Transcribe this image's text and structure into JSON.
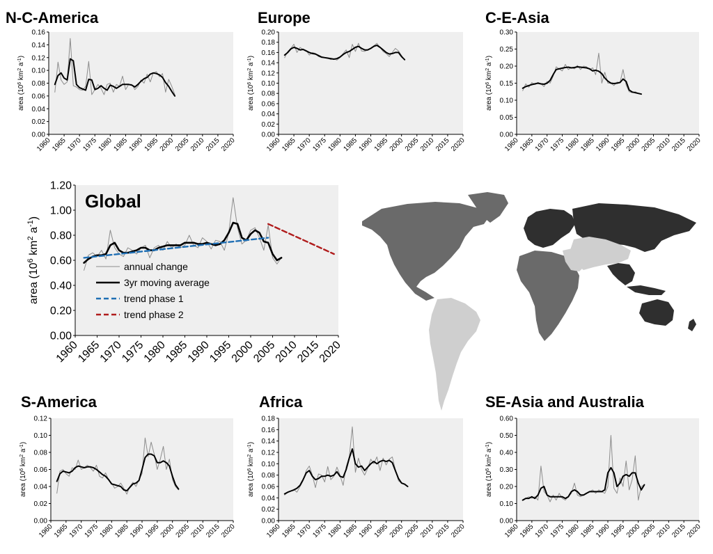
{
  "colors": {
    "plot_bg": "#efefef",
    "annual": "#8c8c8c",
    "moving_avg": "#000000",
    "trend1": "#1f6fb4",
    "trend2": "#b01c1c",
    "map_dark": "#2f2f2f",
    "map_mid": "#6a6a6a",
    "map_light": "#cfcfcf"
  },
  "chart_data": [
    {
      "id": "ncam",
      "type": "line",
      "title": "N-C-America",
      "ylabel": "area (10⁶ km² a⁻¹)",
      "ylim": [
        0,
        0.16
      ],
      "yticks": [
        "0.00",
        "0.02",
        "0.04",
        "0.06",
        "0.08",
        "0.10",
        "0.12",
        "0.14",
        "0.16"
      ],
      "xlim": [
        1960,
        2020
      ],
      "xticks": [
        "1960",
        "1965",
        "1970",
        "1975",
        "1980",
        "1985",
        "1990",
        "1995",
        "2000",
        "2005",
        "2010",
        "2015",
        "2020"
      ],
      "x_start": 1962,
      "series": [
        {
          "name": "annual change",
          "values": [
            0.066,
            0.113,
            0.085,
            0.078,
            0.082,
            0.15,
            0.076,
            0.074,
            0.07,
            0.069,
            0.075,
            0.114,
            0.062,
            0.07,
            0.078,
            0.072,
            0.062,
            0.078,
            0.08,
            0.066,
            0.078,
            0.075,
            0.091,
            0.07,
            0.078,
            0.078,
            0.07,
            0.075,
            0.085,
            0.08,
            0.094,
            0.082,
            0.096,
            0.098,
            0.09,
            0.095,
            0.066,
            0.086,
            0.075,
            0.062
          ]
        },
        {
          "name": "3yr moving average",
          "values": [
            0.078,
            0.092,
            0.096,
            0.088,
            0.085,
            0.118,
            0.115,
            0.078,
            0.073,
            0.071,
            0.069,
            0.086,
            0.085,
            0.07,
            0.072,
            0.076,
            0.072,
            0.069,
            0.077,
            0.075,
            0.072,
            0.075,
            0.078,
            0.078,
            0.078,
            0.077,
            0.074,
            0.078,
            0.083,
            0.087,
            0.089,
            0.094,
            0.096,
            0.095,
            0.093,
            0.089,
            0.081,
            0.075,
            0.067,
            0.06
          ]
        }
      ]
    },
    {
      "id": "europe",
      "type": "line",
      "title": "Europe",
      "ylabel": "area (10⁶ km² a⁻¹)",
      "ylim": [
        0,
        0.2
      ],
      "yticks": [
        "0.00",
        "0.02",
        "0.04",
        "0.06",
        "0.08",
        "0.10",
        "0.12",
        "0.14",
        "0.16",
        "0.18",
        "0.20"
      ],
      "xlim": [
        1960,
        2020
      ],
      "xticks": [
        "1960",
        "1965",
        "1970",
        "1975",
        "1980",
        "1985",
        "1990",
        "1995",
        "2000",
        "2005",
        "2010",
        "2015",
        "2020"
      ],
      "x_start": 1962,
      "series": [
        {
          "name": "annual change",
          "values": [
            0.15,
            0.162,
            0.168,
            0.176,
            0.16,
            0.17,
            0.166,
            0.164,
            0.155,
            0.16,
            0.158,
            0.152,
            0.15,
            0.15,
            0.149,
            0.146,
            0.148,
            0.145,
            0.15,
            0.158,
            0.165,
            0.15,
            0.176,
            0.162,
            0.178,
            0.163,
            0.162,
            0.165,
            0.168,
            0.173,
            0.178,
            0.17,
            0.162,
            0.158,
            0.152,
            0.16,
            0.168,
            0.163,
            0.154,
            0.145
          ]
        },
        {
          "name": "3yr moving average",
          "values": [
            0.155,
            0.16,
            0.167,
            0.17,
            0.168,
            0.165,
            0.166,
            0.163,
            0.16,
            0.158,
            0.157,
            0.154,
            0.151,
            0.15,
            0.149,
            0.148,
            0.147,
            0.148,
            0.151,
            0.156,
            0.16,
            0.162,
            0.166,
            0.17,
            0.172,
            0.168,
            0.165,
            0.165,
            0.168,
            0.172,
            0.174,
            0.17,
            0.165,
            0.16,
            0.157,
            0.158,
            0.16,
            0.16,
            0.152,
            0.146
          ]
        }
      ]
    },
    {
      "id": "ceasia",
      "type": "line",
      "title": "C-E-Asia",
      "ylabel": "area (10⁶ km² a⁻¹)",
      "ylim": [
        0,
        0.3
      ],
      "yticks": [
        "0.00",
        "0.05",
        "0.10",
        "0.15",
        "0.20",
        "0.25",
        "0.30"
      ],
      "xlim": [
        1960,
        2020
      ],
      "xticks": [
        "1960",
        "1965",
        "1970",
        "1975",
        "1980",
        "1985",
        "1990",
        "1995",
        "2000",
        "2005",
        "2010",
        "2015",
        "2020"
      ],
      "x_start": 1962,
      "series": [
        {
          "name": "annual change",
          "values": [
            0.128,
            0.148,
            0.138,
            0.152,
            0.146,
            0.152,
            0.148,
            0.14,
            0.155,
            0.15,
            0.17,
            0.198,
            0.192,
            0.186,
            0.205,
            0.19,
            0.196,
            0.192,
            0.202,
            0.19,
            0.2,
            0.198,
            0.19,
            0.195,
            0.175,
            0.238,
            0.15,
            0.182,
            0.15,
            0.15,
            0.143,
            0.153,
            0.152,
            0.19,
            0.145,
            0.125,
            0.122,
            0.125,
            0.12,
            0.118
          ]
        },
        {
          "name": "3yr moving average",
          "values": [
            0.135,
            0.14,
            0.143,
            0.146,
            0.148,
            0.15,
            0.148,
            0.147,
            0.15,
            0.158,
            0.175,
            0.19,
            0.192,
            0.194,
            0.196,
            0.197,
            0.195,
            0.196,
            0.198,
            0.197,
            0.196,
            0.195,
            0.192,
            0.186,
            0.188,
            0.185,
            0.178,
            0.165,
            0.156,
            0.15,
            0.149,
            0.15,
            0.152,
            0.162,
            0.155,
            0.13,
            0.124,
            0.122,
            0.12,
            0.118
          ]
        }
      ]
    },
    {
      "id": "global",
      "type": "line",
      "title": "Global",
      "ylabel": "area (10⁶ km² a⁻¹)",
      "ylim": [
        0,
        1.2
      ],
      "yticks": [
        "0.00",
        "0.20",
        "0.40",
        "0.60",
        "0.80",
        "1.00",
        "1.20"
      ],
      "xlim": [
        1960,
        2020
      ],
      "xticks": [
        "1960",
        "1965",
        "1970",
        "1975",
        "1980",
        "1985",
        "1990",
        "1995",
        "2000",
        "2005",
        "2010",
        "2015",
        "2020"
      ],
      "x_start": 1962,
      "legend": [
        "annual change",
        "3yr moving average",
        "trend phase 1",
        "trend phase 2"
      ],
      "series": [
        {
          "name": "annual change",
          "values": [
            0.52,
            0.64,
            0.66,
            0.63,
            0.68,
            0.61,
            0.84,
            0.7,
            0.65,
            0.63,
            0.7,
            0.68,
            0.65,
            0.7,
            0.72,
            0.62,
            0.7,
            0.72,
            0.68,
            0.75,
            0.7,
            0.73,
            0.7,
            0.72,
            0.8,
            0.72,
            0.7,
            0.78,
            0.75,
            0.69,
            0.76,
            0.75,
            0.68,
            0.82,
            1.1,
            0.86,
            0.73,
            0.76,
            0.84,
            0.86,
            0.78,
            0.68,
            0.88,
            0.62,
            0.57,
            0.62
          ]
        },
        {
          "name": "3yr moving average",
          "values": [
            0.58,
            0.61,
            0.63,
            0.64,
            0.64,
            0.65,
            0.72,
            0.74,
            0.68,
            0.66,
            0.66,
            0.67,
            0.68,
            0.7,
            0.7,
            0.68,
            0.68,
            0.7,
            0.71,
            0.72,
            0.72,
            0.72,
            0.72,
            0.74,
            0.74,
            0.74,
            0.73,
            0.73,
            0.74,
            0.73,
            0.72,
            0.73,
            0.76,
            0.82,
            0.9,
            0.89,
            0.78,
            0.76,
            0.81,
            0.84,
            0.82,
            0.75,
            0.74,
            0.65,
            0.6,
            0.62
          ]
        },
        {
          "name": "trend phase 1",
          "values": [
            0.62,
            0.78
          ],
          "x": [
            1962,
            2004
          ]
        },
        {
          "name": "trend phase 2",
          "values": [
            0.89,
            0.65
          ],
          "x": [
            2004,
            2019
          ]
        }
      ]
    },
    {
      "id": "samerica",
      "type": "line",
      "title": "S-America",
      "ylabel": "area (10⁶ km² a⁻¹)",
      "ylim": [
        0,
        0.12
      ],
      "yticks": [
        "0.00",
        "0.02",
        "0.04",
        "0.06",
        "0.08",
        "0.10",
        "0.12"
      ],
      "xlim": [
        1960,
        2020
      ],
      "xticks": [
        "1960",
        "1965",
        "1970",
        "1975",
        "1980",
        "1985",
        "1990",
        "1995",
        "2000",
        "2005",
        "2010",
        "2015",
        "2020"
      ],
      "x_start": 1962,
      "series": [
        {
          "name": "annual change",
          "values": [
            0.032,
            0.058,
            0.06,
            0.055,
            0.052,
            0.062,
            0.06,
            0.071,
            0.06,
            0.062,
            0.065,
            0.062,
            0.058,
            0.065,
            0.052,
            0.05,
            0.056,
            0.048,
            0.044,
            0.038,
            0.04,
            0.044,
            0.038,
            0.031,
            0.04,
            0.045,
            0.04,
            0.048,
            0.055,
            0.097,
            0.075,
            0.092,
            0.078,
            0.06,
            0.072,
            0.087,
            0.06,
            0.072,
            0.048,
            0.04,
            0.036
          ]
        },
        {
          "name": "3yr moving average",
          "values": [
            0.046,
            0.055,
            0.058,
            0.057,
            0.056,
            0.058,
            0.062,
            0.064,
            0.063,
            0.062,
            0.063,
            0.063,
            0.062,
            0.06,
            0.057,
            0.054,
            0.052,
            0.048,
            0.043,
            0.042,
            0.041,
            0.04,
            0.036,
            0.035,
            0.039,
            0.043,
            0.044,
            0.047,
            0.06,
            0.074,
            0.078,
            0.078,
            0.076,
            0.068,
            0.068,
            0.07,
            0.068,
            0.064,
            0.052,
            0.042,
            0.037
          ]
        }
      ]
    },
    {
      "id": "africa",
      "type": "line",
      "title": "Africa",
      "ylabel": "area (10⁶ km² a⁻¹)",
      "ylim": [
        0,
        0.18
      ],
      "yticks": [
        "0.00",
        "0.02",
        "0.04",
        "0.06",
        "0.08",
        "0.10",
        "0.12",
        "0.14",
        "0.16",
        "0.18"
      ],
      "xlim": [
        1960,
        2020
      ],
      "xticks": [
        "1960",
        "1965",
        "1970",
        "1975",
        "1980",
        "1985",
        "1990",
        "1995",
        "2000",
        "2005",
        "2010",
        "2015",
        "2020"
      ],
      "x_start": 1962,
      "series": [
        {
          "name": "annual change",
          "values": [
            0.045,
            0.05,
            0.052,
            0.055,
            0.05,
            0.06,
            0.07,
            0.088,
            0.096,
            0.08,
            0.058,
            0.082,
            0.08,
            0.068,
            0.095,
            0.072,
            0.078,
            0.094,
            0.08,
            0.062,
            0.095,
            0.112,
            0.165,
            0.085,
            0.11,
            0.09,
            0.08,
            0.092,
            0.108,
            0.1,
            0.112,
            0.088,
            0.11,
            0.098,
            0.108,
            0.112,
            0.09,
            0.07,
            0.066,
            0.064,
            0.06
          ]
        },
        {
          "name": "3yr moving average",
          "values": [
            0.047,
            0.05,
            0.052,
            0.054,
            0.057,
            0.062,
            0.072,
            0.084,
            0.088,
            0.078,
            0.072,
            0.074,
            0.078,
            0.078,
            0.08,
            0.078,
            0.08,
            0.086,
            0.078,
            0.076,
            0.09,
            0.11,
            0.126,
            0.1,
            0.094,
            0.096,
            0.088,
            0.094,
            0.1,
            0.104,
            0.1,
            0.104,
            0.106,
            0.104,
            0.106,
            0.102,
            0.088,
            0.074,
            0.066,
            0.064,
            0.06
          ]
        }
      ]
    },
    {
      "id": "seasia",
      "type": "line",
      "title": "SE-Asia and Australia",
      "ylabel": "area (10⁶ km² a⁻¹)",
      "ylim": [
        0,
        0.6
      ],
      "yticks": [
        "0.00",
        "0.10",
        "0.20",
        "0.30",
        "0.40",
        "0.50",
        "0.60"
      ],
      "xlim": [
        1960,
        2020
      ],
      "xticks": [
        "1960",
        "1965",
        "1970",
        "1975",
        "1980",
        "1985",
        "1990",
        "1995",
        "2000",
        "2005",
        "2010",
        "2015",
        "2020"
      ],
      "x_start": 1962,
      "series": [
        {
          "name": "annual change",
          "values": [
            0.12,
            0.13,
            0.14,
            0.13,
            0.14,
            0.12,
            0.32,
            0.17,
            0.15,
            0.11,
            0.15,
            0.12,
            0.16,
            0.13,
            0.12,
            0.14,
            0.16,
            0.22,
            0.15,
            0.14,
            0.15,
            0.16,
            0.17,
            0.18,
            0.16,
            0.18,
            0.17,
            0.16,
            0.2,
            0.5,
            0.19,
            0.16,
            0.25,
            0.2,
            0.35,
            0.18,
            0.24,
            0.38,
            0.12,
            0.2,
            0.21
          ]
        },
        {
          "name": "3yr moving average",
          "values": [
            0.12,
            0.13,
            0.13,
            0.14,
            0.13,
            0.15,
            0.19,
            0.2,
            0.15,
            0.14,
            0.14,
            0.14,
            0.14,
            0.14,
            0.13,
            0.14,
            0.17,
            0.18,
            0.17,
            0.15,
            0.15,
            0.16,
            0.17,
            0.17,
            0.17,
            0.17,
            0.17,
            0.18,
            0.28,
            0.31,
            0.28,
            0.2,
            0.22,
            0.26,
            0.27,
            0.26,
            0.28,
            0.28,
            0.22,
            0.18,
            0.21
          ]
        }
      ]
    }
  ]
}
